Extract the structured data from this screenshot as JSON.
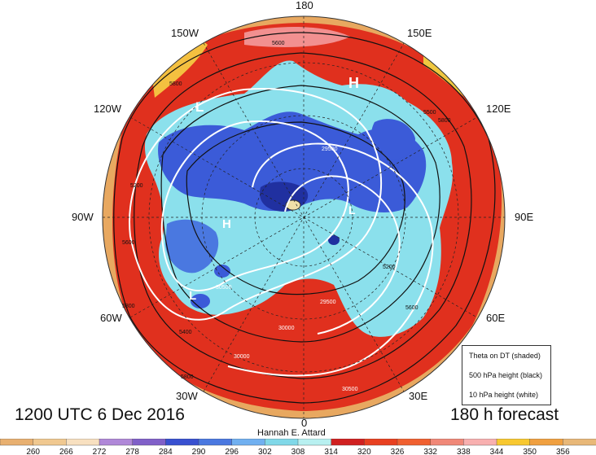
{
  "map": {
    "longitude_labels": [
      "180",
      "150E",
      "120E",
      "90E",
      "60E",
      "30E",
      "0",
      "30W",
      "60W",
      "90W",
      "120W",
      "150W"
    ],
    "pressure_system_labels": [
      "H",
      "L",
      "H",
      "L",
      "L"
    ],
    "contour_labels": [
      "5600",
      "5800",
      "5500",
      "5200",
      "5600",
      "5800",
      "5400",
      "5800",
      "5200",
      "5600",
      "5800",
      "30500",
      "29500",
      "30000",
      "29500",
      "30500",
      "30000"
    ]
  },
  "captions": {
    "datetime": "1200 UTC 6 Dec 2016",
    "forecast": "180 h forecast",
    "author": "Hannah E. Attard"
  },
  "legend": {
    "line1": "Theta on DT (shaded)",
    "line2": "500 hPa height (black)",
    "line3": "10 hPa height (white)"
  },
  "colorbar": {
    "ticks": [
      "260",
      "266",
      "272",
      "278",
      "284",
      "290",
      "296",
      "302",
      "308",
      "314",
      "320",
      "326",
      "332",
      "338",
      "344",
      "350",
      "356"
    ],
    "colors": [
      "#e8b070",
      "#f0c890",
      "#f8e0c0",
      "#b088d8",
      "#8060c8",
      "#3850d0",
      "#4a78e0",
      "#70b0f0",
      "#80d8e8",
      "#b8f0f0",
      "#d02020",
      "#e84020",
      "#f06030",
      "#f08878",
      "#f8b0b0",
      "#f8c830",
      "#f0a040",
      "#e8b878"
    ]
  },
  "colors": {
    "warm_red": "#e0301e",
    "cold_blue": "#3b5bd8",
    "cyan": "#8be0ec",
    "orange_ring": "#e8a860",
    "pink": "#f59a9a"
  }
}
